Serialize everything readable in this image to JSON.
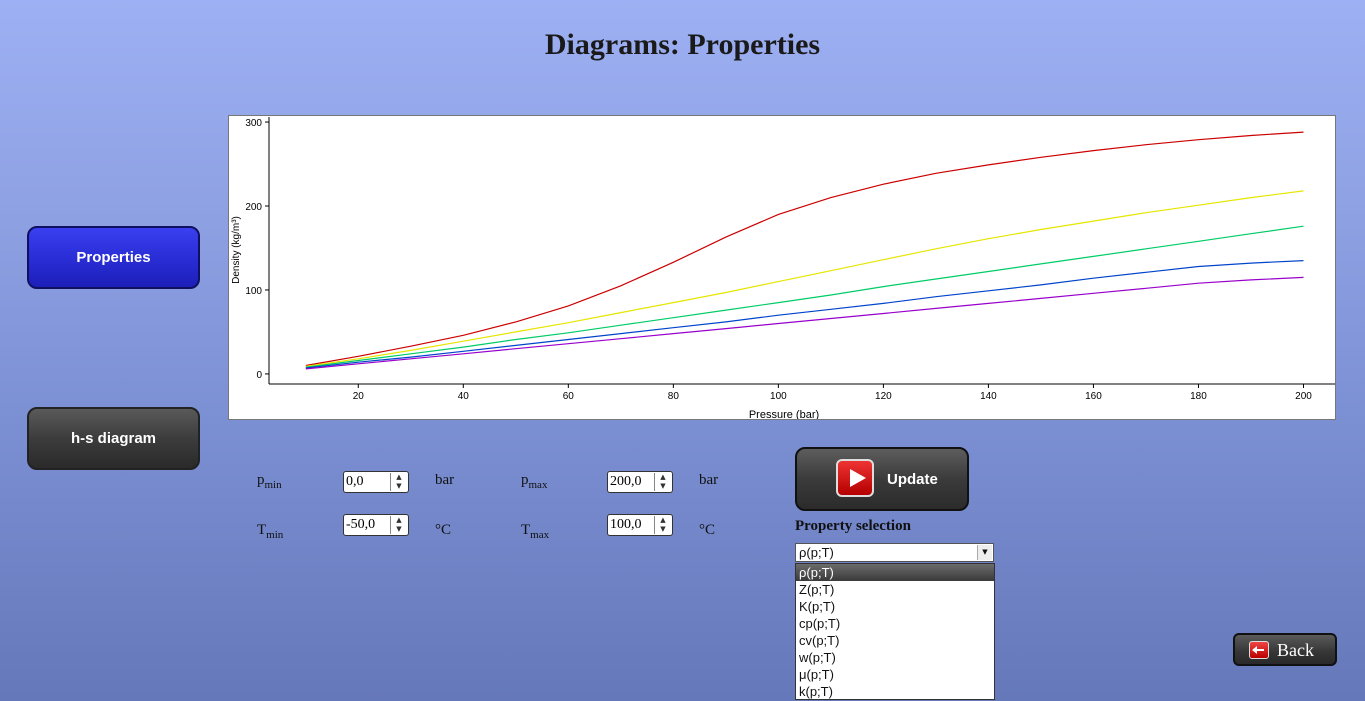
{
  "page": {
    "title": "Diagrams: Properties"
  },
  "nav": {
    "properties_label": "Properties",
    "hs_label": "h-s diagram"
  },
  "controls": {
    "pmin": {
      "sym": "p",
      "sub": "min",
      "value": "0,0",
      "unit": "bar"
    },
    "pmax": {
      "sym": "p",
      "sub": "max",
      "value": "200,0",
      "unit": "bar"
    },
    "tmin": {
      "sym": "T",
      "sub": "min",
      "value": "-50,0",
      "unit": "°C"
    },
    "tmax": {
      "sym": "T",
      "sub": "max",
      "value": "100,0",
      "unit": "°C"
    },
    "update_label": "Update",
    "property_selection_label": "Property selection",
    "selected": "ρ(p;T)",
    "options": [
      "ρ(p;T)",
      "Z(p;T)",
      "K(p;T)",
      "cp(p;T)",
      "cv(p;T)",
      "w(p;T)",
      "μ(p;T)",
      "k(p;T)"
    ],
    "back_label": "Back"
  },
  "chart_data": {
    "type": "line",
    "xlabel": "Pressure (bar)",
    "ylabel": "Density (kg/m³)",
    "xlim": [
      3,
      206
    ],
    "ylim": [
      -12,
      306
    ],
    "xticks": [
      20,
      40,
      60,
      80,
      100,
      120,
      140,
      160,
      180,
      200
    ],
    "yticks": [
      0,
      100,
      200,
      300
    ],
    "x": [
      10,
      20,
      30,
      40,
      50,
      60,
      70,
      80,
      90,
      100,
      110,
      120,
      130,
      140,
      150,
      160,
      170,
      180,
      190,
      200
    ],
    "series": [
      {
        "color": "#cc0000",
        "values": [
          10,
          21,
          33,
          46,
          62,
          81,
          105,
          133,
          163,
          190,
          210,
          226,
          239,
          249,
          258,
          266,
          273,
          279,
          284,
          288
        ]
      },
      {
        "color": "#e6e600",
        "values": [
          9,
          18,
          28,
          39,
          50,
          61,
          73,
          85,
          97,
          110,
          123,
          136,
          149,
          161,
          172,
          182,
          192,
          201,
          210,
          218
        ]
      },
      {
        "color": "#00cc66",
        "values": [
          8,
          16,
          24,
          32,
          41,
          49,
          58,
          67,
          76,
          85,
          94,
          104,
          113,
          122,
          131,
          140,
          149,
          158,
          167,
          176
        ]
      },
      {
        "color": "#0044cc",
        "values": [
          7,
          14,
          20,
          27,
          34,
          41,
          48,
          55,
          62,
          70,
          77,
          84,
          92,
          99,
          106,
          114,
          121,
          128,
          132,
          135
        ]
      },
      {
        "color": "#9900cc",
        "values": [
          6,
          12,
          18,
          24,
          30,
          36,
          42,
          48,
          54,
          60,
          66,
          72,
          78,
          84,
          90,
          96,
          102,
          108,
          112,
          115
        ]
      }
    ]
  }
}
